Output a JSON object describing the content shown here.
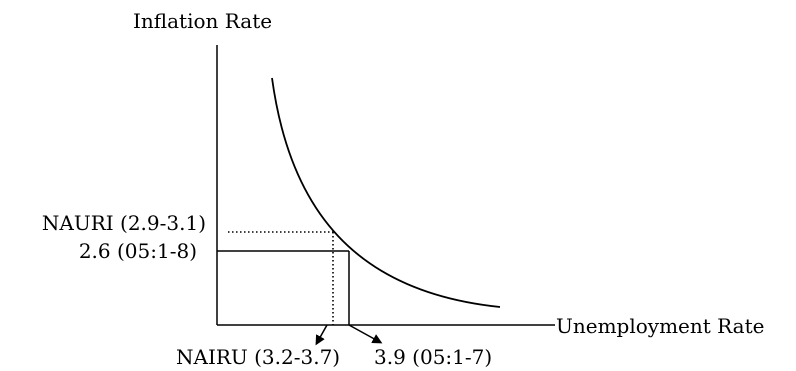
{
  "y_axis_label": "Inflation Rate",
  "x_axis_label": "Unemployment Rate",
  "nauri_label": "NAURI (2.9-3.1)",
  "actual_inflation_label": "2.6 (05:1-8)",
  "nairu_label": "NAIRU (3.2-3.7)",
  "actual_unemployment_label": "3.9 (05:1-7)"
}
